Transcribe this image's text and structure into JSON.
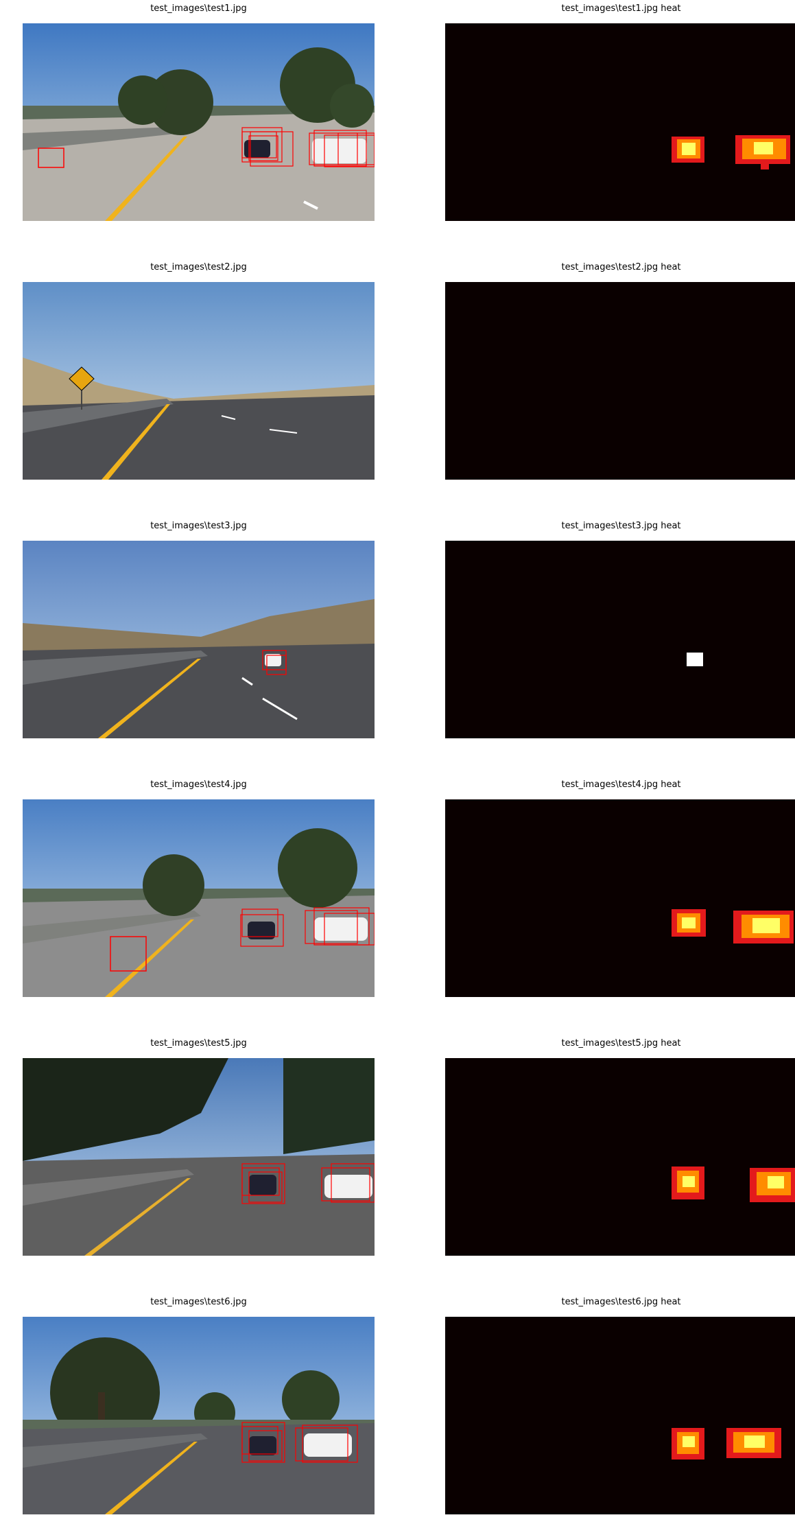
{
  "colors": {
    "box": "#ff0000",
    "heat_bg": "#0a0000",
    "heat_red": "#e31a1c",
    "heat_orange": "#ff8c00",
    "heat_yellow": "#ffff66",
    "heat_white": "#ffffff"
  },
  "rows": [
    {
      "image_title": "test_images\\test1.jpg",
      "heat_title": "test_images\\test1.jpg heat",
      "scene": "highway-with-trees",
      "detections": [
        "car-dark",
        "car-white",
        "car-small-left"
      ],
      "heat_blobs": [
        "blob-1",
        "blob-2"
      ]
    },
    {
      "image_title": "test_images\\test2.jpg",
      "heat_title": "test_images\\test2.jpg heat",
      "scene": "highway-with-sign",
      "detections": [],
      "heat_blobs": []
    },
    {
      "image_title": "test_images\\test3.jpg",
      "heat_title": "test_images\\test3.jpg heat",
      "scene": "highway-with-hills",
      "detections": [
        "car-white-far"
      ],
      "heat_blobs": [
        "blob-1"
      ]
    },
    {
      "image_title": "test_images\\test4.jpg",
      "heat_title": "test_images\\test4.jpg heat",
      "scene": "highway-with-trees",
      "detections": [
        "car-dark",
        "car-white",
        "false-positive-road"
      ],
      "heat_blobs": [
        "blob-1",
        "blob-2"
      ]
    },
    {
      "image_title": "test_images\\test5.jpg",
      "heat_title": "test_images\\test5.jpg heat",
      "scene": "highway-shadows",
      "detections": [
        "car-dark",
        "car-white"
      ],
      "heat_blobs": [
        "blob-1",
        "blob-2"
      ]
    },
    {
      "image_title": "test_images\\test6.jpg",
      "heat_title": "test_images\\test6.jpg heat",
      "scene": "highway-with-tree-left",
      "detections": [
        "car-dark",
        "car-white"
      ],
      "heat_blobs": [
        "blob-1",
        "blob-2"
      ]
    }
  ]
}
